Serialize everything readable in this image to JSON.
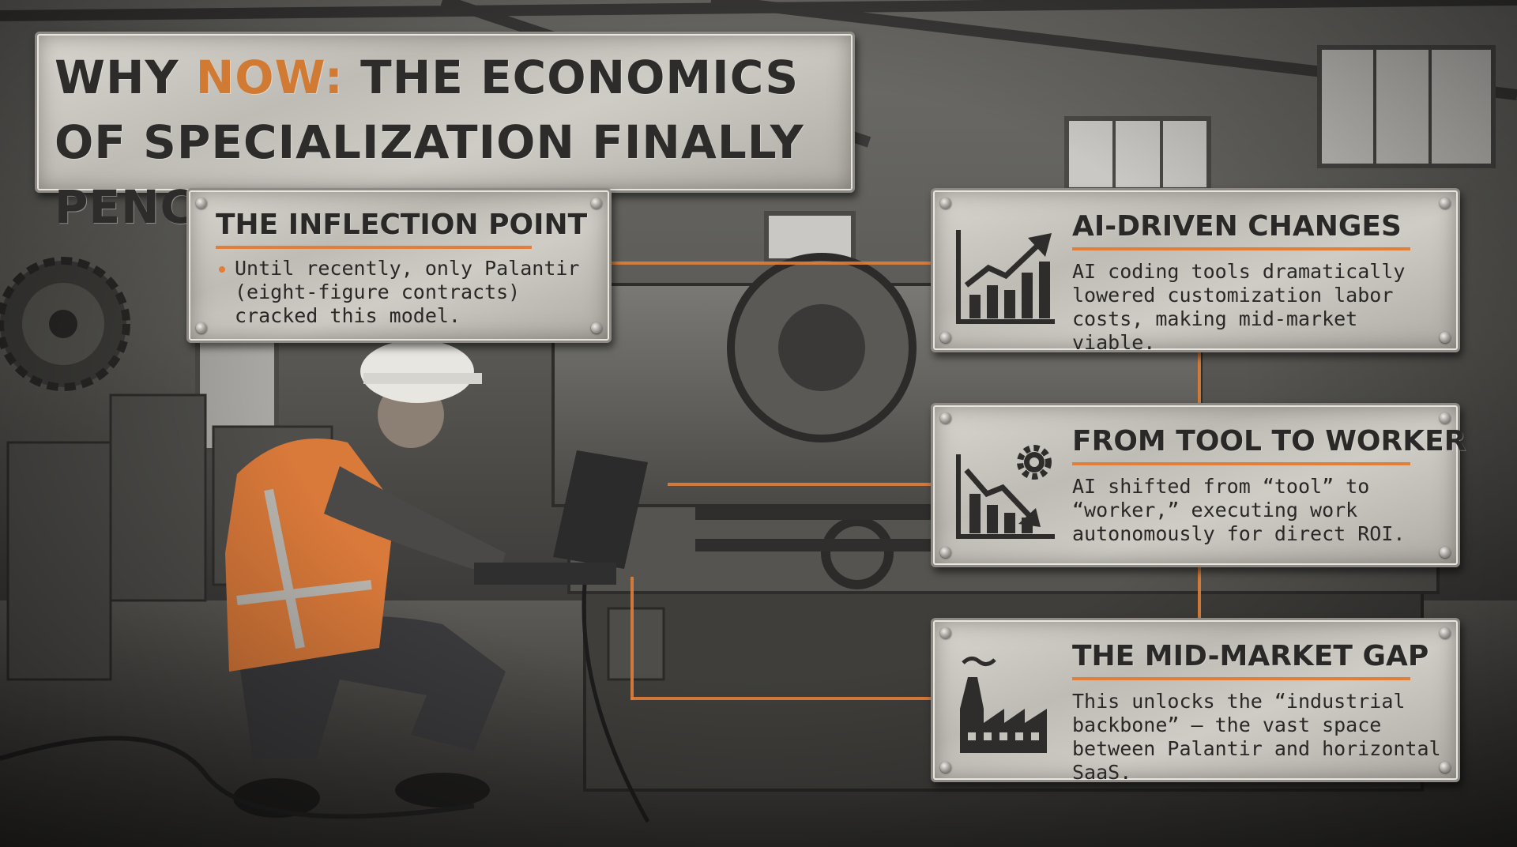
{
  "title": {
    "prefix": "WHY ",
    "accent": "NOW:",
    "rest": " THE ECONOMICS OF SPECIALIZATION FINALLY PENCIL"
  },
  "cards": [
    {
      "heading": "THE INFLECTION POINT",
      "body": "Until recently, only Palantir (eight-figure contracts) cracked this model."
    },
    {
      "heading": "AI-DRIVEN CHANGES",
      "icon": "rising-bar-chart-icon",
      "body": "AI coding tools dramatically lowered customization labor costs, making mid-market viable."
    },
    {
      "heading": "FROM TOOL TO WORKER",
      "icon": "declining-chart-gear-icon",
      "body": "AI shifted from “tool” to “worker,” executing work autonomously for direct ROI."
    },
    {
      "heading": "THE MID-MARKET GAP",
      "icon": "factory-icon",
      "body": "This unlocks the “industrial backbone” — the vast space between Palantir and horizontal SaaS."
    }
  ],
  "colors": {
    "accent": "#e07e3a",
    "plate": "#c9c6c0",
    "text": "#2b2927",
    "vest": "#d9793a"
  }
}
